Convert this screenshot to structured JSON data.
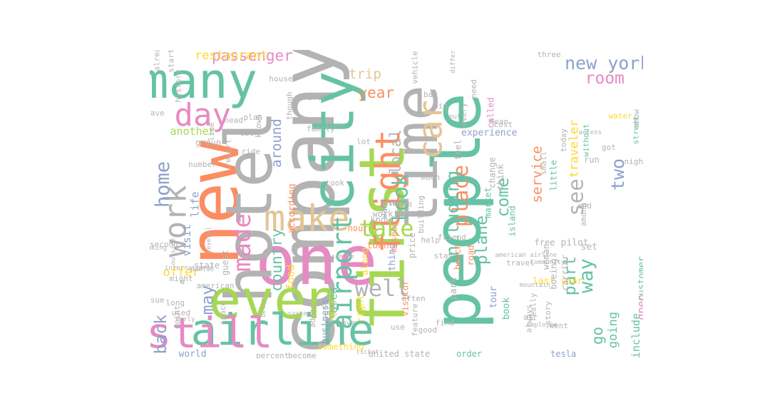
{
  "palette": {
    "grey": "#b3b3b3",
    "orange": "#fc8d62",
    "teal": "#66c2a5",
    "pink": "#e78ac3",
    "green": "#a6d854",
    "tan": "#e5c494",
    "blue": "#8da0cb",
    "yellow": "#ffd92f"
  },
  "words": [
    {
      "text": "company",
      "color": "grey",
      "weight": 100,
      "vertical": true
    },
    {
      "text": "new",
      "color": "orange",
      "weight": 92,
      "vertical": true
    },
    {
      "text": "one",
      "color": "pink",
      "weight": 90,
      "vertical": false
    },
    {
      "text": "people",
      "color": "teal",
      "weight": 88,
      "vertical": true
    },
    {
      "text": "hotel",
      "color": "grey",
      "weight": 86,
      "vertical": true
    },
    {
      "text": "first",
      "color": "green",
      "weight": 84,
      "vertical": true
    },
    {
      "text": "time",
      "color": "grey",
      "weight": 80,
      "vertical": true
    },
    {
      "text": "city",
      "color": "teal",
      "weight": 78,
      "vertical": true
    },
    {
      "text": "even",
      "color": "green",
      "weight": 72,
      "vertical": false
    },
    {
      "text": "many",
      "color": "teal",
      "weight": 66,
      "vertical": false
    },
    {
      "text": "airline",
      "color": "teal",
      "weight": 58,
      "vertical": false
    },
    {
      "text": "still",
      "color": "pink",
      "weight": 56,
      "vertical": false
    },
    {
      "text": "make",
      "color": "tan",
      "weight": 48,
      "vertical": false
    },
    {
      "text": "flight",
      "color": "orange",
      "weight": 46,
      "vertical": true
    },
    {
      "text": "car",
      "color": "tan",
      "weight": 44,
      "vertical": true
    },
    {
      "text": "day",
      "color": "pink",
      "weight": 42,
      "vertical": false
    },
    {
      "text": "work",
      "color": "grey",
      "weight": 40,
      "vertical": true
    },
    {
      "text": "airport",
      "color": "teal",
      "weight": 36,
      "vertical": true
    },
    {
      "text": "made",
      "color": "pink",
      "weight": 32,
      "vertical": true
    },
    {
      "text": "well",
      "color": "grey",
      "weight": 30,
      "vertical": false
    },
    {
      "text": "take",
      "color": "green",
      "weight": 30,
      "vertical": false
    },
    {
      "text": "look",
      "color": "teal",
      "weight": 28,
      "vertical": true
    },
    {
      "text": "place",
      "color": "orange",
      "weight": 28,
      "vertical": true
    },
    {
      "text": "see",
      "color": "grey",
      "weight": 28,
      "vertical": true
    },
    {
      "text": "home",
      "color": "blue",
      "weight": 26,
      "vertical": true
    },
    {
      "text": "new york",
      "color": "blue",
      "weight": 24,
      "vertical": false
    },
    {
      "text": "including",
      "color": "teal",
      "weight": 24,
      "vertical": true
    },
    {
      "text": "way",
      "color": "teal",
      "weight": 26,
      "vertical": true
    },
    {
      "text": "back",
      "color": "blue",
      "weight": 22,
      "vertical": true
    },
    {
      "text": "two",
      "color": "blue",
      "weight": 24,
      "vertical": true
    },
    {
      "text": "room",
      "color": "pink",
      "weight": 22,
      "vertical": false
    },
    {
      "text": "passenger",
      "color": "pink",
      "weight": 20,
      "vertical": false
    },
    {
      "text": "plane",
      "color": "teal",
      "weight": 22,
      "vertical": true
    },
    {
      "text": "come",
      "color": "teal",
      "weight": 22,
      "vertical": true
    },
    {
      "text": "may",
      "color": "blue",
      "weight": 22,
      "vertical": true
    },
    {
      "text": "part",
      "color": "teal",
      "weight": 22,
      "vertical": true
    },
    {
      "text": "year",
      "color": "orange",
      "weight": 20,
      "vertical": false
    },
    {
      "text": "local",
      "color": "grey",
      "weight": 20,
      "vertical": true
    },
    {
      "text": "around",
      "color": "blue",
      "weight": 18,
      "vertical": true
    },
    {
      "text": "country",
      "color": "teal",
      "weight": 20,
      "vertical": true
    },
    {
      "text": "restaurant",
      "color": "yellow",
      "weight": 16,
      "vertical": false
    },
    {
      "text": "trip",
      "color": "tan",
      "weight": 18,
      "vertical": false
    },
    {
      "text": "offer",
      "color": "yellow",
      "weight": 16,
      "vertical": false
    },
    {
      "text": "service",
      "color": "orange",
      "weight": 18,
      "vertical": true
    },
    {
      "text": "traveler",
      "color": "yellow",
      "weight": 16,
      "vertical": true
    },
    {
      "text": "going",
      "color": "teal",
      "weight": 16,
      "vertical": true
    },
    {
      "text": "another",
      "color": "green",
      "weight": 14,
      "vertical": false
    },
    {
      "text": "go",
      "color": "teal",
      "weight": 20,
      "vertical": true
    },
    {
      "text": "visit",
      "color": "blue",
      "weight": 14,
      "vertical": true
    },
    {
      "text": "life",
      "color": "blue",
      "weight": 14,
      "vertical": true
    },
    {
      "text": "include",
      "color": "teal",
      "weight": 14,
      "vertical": true
    },
    {
      "text": "open",
      "color": "pink",
      "weight": 14,
      "vertical": true
    },
    {
      "text": "experience",
      "color": "blue",
      "weight": 12,
      "vertical": false
    },
    {
      "text": "last year",
      "color": "yellow",
      "weight": 12,
      "vertical": false
    },
    {
      "text": "area",
      "color": "teal",
      "weight": 14,
      "vertical": true
    },
    {
      "text": "food",
      "color": "yellow",
      "weight": 14,
      "vertical": true
    },
    {
      "text": "according",
      "color": "orange",
      "weight": 12,
      "vertical": true
    },
    {
      "text": "customer",
      "color": "teal",
      "weight": 12,
      "vertical": true
    },
    {
      "text": "world",
      "color": "blue",
      "weight": 12,
      "vertical": false
    },
    {
      "text": "united state",
      "color": "grey",
      "weight": 11,
      "vertical": false
    },
    {
      "text": "order",
      "color": "teal",
      "weight": 11,
      "vertical": false
    },
    {
      "text": "tesla",
      "color": "blue",
      "weight": 11,
      "vertical": false
    },
    {
      "text": "something",
      "color": "yellow",
      "weight": 11,
      "vertical": false
    },
    {
      "text": "become",
      "color": "grey",
      "weight": 10,
      "vertical": false
    },
    {
      "text": "percent",
      "color": "grey",
      "weight": 10,
      "vertical": false
    },
    {
      "text": "ticket",
      "color": "grey",
      "weight": 9,
      "vertical": false
    },
    {
      "text": "told",
      "color": "tan",
      "weight": 12,
      "vertical": true
    },
    {
      "text": "business",
      "color": "blue",
      "weight": 12,
      "vertical": true
    },
    {
      "text": "right",
      "color": "yellow",
      "weight": 12,
      "vertical": true
    },
    {
      "text": "along",
      "color": "yellow",
      "weight": 12,
      "vertical": true
    },
    {
      "text": "thing",
      "color": "blue",
      "weight": 12,
      "vertical": true
    },
    {
      "text": "town",
      "color": "orange",
      "weight": 12,
      "vertical": false
    },
    {
      "text": "museum",
      "color": "orange",
      "weight": 11,
      "vertical": true
    },
    {
      "text": "want",
      "color": "blue",
      "weight": 11,
      "vertical": true
    },
    {
      "text": "hour",
      "color": "orange",
      "weight": 11,
      "vertical": false
    },
    {
      "text": "know",
      "color": "grey",
      "weight": 11,
      "vertical": false
    },
    {
      "text": "working",
      "color": "grey",
      "weight": 11,
      "vertical": false
    },
    {
      "text": "price",
      "color": "grey",
      "weight": 11,
      "vertical": true
    },
    {
      "text": "visitor",
      "color": "orange",
      "weight": 11,
      "vertical": true
    },
    {
      "text": "park",
      "color": "grey",
      "weight": 12,
      "vertical": true
    },
    {
      "text": "tour",
      "color": "blue",
      "weight": 12,
      "vertical": true
    },
    {
      "text": "book",
      "color": "teal",
      "weight": 12,
      "vertical": true
    },
    {
      "text": "beach",
      "color": "orange",
      "weight": 11,
      "vertical": true
    },
    {
      "text": "road",
      "color": "orange",
      "weight": 11,
      "vertical": true
    },
    {
      "text": "woman",
      "color": "grey",
      "weight": 11,
      "vertical": true
    },
    {
      "text": "free",
      "color": "grey",
      "weight": 11,
      "vertical": false
    },
    {
      "text": "pilot",
      "color": "grey",
      "weight": 12,
      "vertical": false
    },
    {
      "text": "boeing",
      "color": "grey",
      "weight": 11,
      "vertical": true
    },
    {
      "text": "carrier",
      "color": "grey",
      "weight": 11,
      "vertical": true
    },
    {
      "text": "island",
      "color": "teal",
      "weight": 11,
      "vertical": true
    },
    {
      "text": "market",
      "color": "teal",
      "weight": 11,
      "vertical": true
    },
    {
      "text": "change",
      "color": "grey",
      "weight": 11,
      "vertical": true
    },
    {
      "text": "think",
      "color": "grey",
      "weight": 11,
      "vertical": true
    },
    {
      "text": "friend",
      "color": "grey",
      "weight": 10,
      "vertical": false
    },
    {
      "text": "building",
      "color": "grey",
      "weight": 10,
      "vertical": true
    },
    {
      "text": "small",
      "color": "grey",
      "weight": 10,
      "vertical": true
    },
    {
      "text": "set",
      "color": "grey",
      "weight": 12,
      "vertical": false
    },
    {
      "text": "little",
      "color": "teal",
      "weight": 11,
      "vertical": true
    },
    {
      "text": "night",
      "color": "grey",
      "weight": 10,
      "vertical": false
    },
    {
      "text": "street",
      "color": "teal",
      "weight": 10,
      "vertical": true
    },
    {
      "text": "show",
      "color": "grey",
      "weight": 10,
      "vertical": true
    },
    {
      "text": "today",
      "color": "grey",
      "weight": 10,
      "vertical": true
    },
    {
      "text": "without",
      "color": "teal",
      "weight": 10,
      "vertical": true
    },
    {
      "text": "water",
      "color": "yellow",
      "weight": 10,
      "vertical": false
    },
    {
      "text": "got",
      "color": "grey",
      "weight": 10,
      "vertical": false
    },
    {
      "text": "run",
      "color": "grey",
      "weight": 11,
      "vertical": false
    },
    {
      "text": "cost",
      "color": "grey",
      "weight": 10,
      "vertical": false
    },
    {
      "text": "called",
      "color": "pink",
      "weight": 11,
      "vertical": true
    },
    {
      "text": "feel",
      "color": "grey",
      "weight": 11,
      "vertical": true
    },
    {
      "text": "need",
      "color": "grey",
      "weight": 10,
      "vertical": true
    },
    {
      "text": "bar",
      "color": "grey",
      "weight": 10,
      "vertical": false
    },
    {
      "text": "plan",
      "color": "grey",
      "weight": 10,
      "vertical": false
    },
    {
      "text": "family",
      "color": "grey",
      "weight": 10,
      "vertical": false
    },
    {
      "text": "known",
      "color": "grey",
      "weight": 10,
      "vertical": true
    },
    {
      "text": "uber",
      "color": "grey",
      "weight": 10,
      "vertical": false
    },
    {
      "text": "ride",
      "color": "grey",
      "weight": 10,
      "vertical": false
    },
    {
      "text": "house",
      "color": "grey",
      "weight": 10,
      "vertical": false
    },
    {
      "text": "resort",
      "color": "grey",
      "weight": 10,
      "vertical": true
    },
    {
      "text": "group",
      "color": "grey",
      "weight": 11,
      "vertical": false
    },
    {
      "text": "number",
      "color": "grey",
      "weight": 10,
      "vertical": false
    },
    {
      "text": "head",
      "color": "grey",
      "weight": 10,
      "vertical": false
    },
    {
      "text": "line",
      "color": "grey",
      "weight": 10,
      "vertical": true
    },
    {
      "text": "state",
      "color": "grey",
      "weight": 11,
      "vertical": false
    },
    {
      "text": "used",
      "color": "grey",
      "weight": 10,
      "vertical": false
    },
    {
      "text": "guest",
      "color": "grey",
      "weight": 11,
      "vertical": true
    },
    {
      "text": "space",
      "color": "grey",
      "weight": 10,
      "vertical": true
    },
    {
      "text": "american",
      "color": "grey",
      "weight": 10,
      "vertical": false
    },
    {
      "text": "long",
      "color": "grey",
      "weight": 10,
      "vertical": false
    },
    {
      "text": "point",
      "color": "grey",
      "weight": 10,
      "vertical": true
    },
    {
      "text": "might",
      "color": "grey",
      "weight": 10,
      "vertical": false
    },
    {
      "text": "second",
      "color": "grey",
      "weight": 10,
      "vertical": false
    },
    {
      "text": "started",
      "color": "grey",
      "weight": 10,
      "vertical": true
    },
    {
      "text": "making",
      "color": "grey",
      "weight": 9,
      "vertical": false
    },
    {
      "text": "better",
      "color": "grey",
      "weight": 9,
      "vertical": true
    },
    {
      "text": "system",
      "color": "grey",
      "weight": 9,
      "vertical": false
    },
    {
      "text": "added",
      "color": "grey",
      "weight": 10,
      "vertical": true
    },
    {
      "text": "aircraft",
      "color": "grey",
      "weight": 10,
      "vertical": true
    },
    {
      "text": "love",
      "color": "grey",
      "weight": 10,
      "vertical": false
    },
    {
      "text": "use",
      "color": "grey",
      "weight": 10,
      "vertical": false
    },
    {
      "text": "good",
      "color": "grey",
      "weight": 10,
      "vertical": false
    },
    {
      "text": "help",
      "color": "grey",
      "weight": 10,
      "vertical": false
    },
    {
      "text": "stay",
      "color": "grey",
      "weight": 10,
      "vertical": false
    },
    {
      "text": "took",
      "color": "grey",
      "weight": 10,
      "vertical": false
    },
    {
      "text": "much",
      "color": "grey",
      "weight": 10,
      "vertical": false
    },
    {
      "text": "lot",
      "color": "grey",
      "weight": 10,
      "vertical": false
    },
    {
      "text": "start",
      "color": "grey",
      "weight": 9,
      "vertical": false
    },
    {
      "text": "driver",
      "color": "grey",
      "weight": 10,
      "vertical": false
    },
    {
      "text": "though",
      "color": "grey",
      "weight": 10,
      "vertical": true
    },
    {
      "text": "vehicle",
      "color": "grey",
      "weight": 10,
      "vertical": true
    },
    {
      "text": "feature",
      "color": "grey",
      "weight": 10,
      "vertical": true
    },
    {
      "text": "often",
      "color": "grey",
      "weight": 10,
      "vertical": false
    },
    {
      "text": "find",
      "color": "grey",
      "weight": 10,
      "vertical": false
    },
    {
      "text": "community",
      "color": "grey",
      "weight": 9,
      "vertical": false
    },
    {
      "text": "always",
      "color": "grey",
      "weight": 10,
      "vertical": true
    },
    {
      "text": "really",
      "color": "grey",
      "weight": 10,
      "vertical": true
    },
    {
      "text": "every",
      "color": "grey",
      "weight": 10,
      "vertical": true
    },
    {
      "text": "three",
      "color": "grey",
      "weight": 10,
      "vertical": false
    },
    {
      "text": "mean",
      "color": "grey",
      "weight": 10,
      "vertical": false
    },
    {
      "text": "big",
      "color": "grey",
      "weight": 10,
      "vertical": false
    },
    {
      "text": "put",
      "color": "grey",
      "weight": 9,
      "vertical": false
    },
    {
      "text": "access",
      "color": "grey",
      "weight": 9,
      "vertical": false
    },
    {
      "text": "among",
      "color": "grey",
      "weight": 10,
      "vertical": true
    },
    {
      "text": "end",
      "color": "grey",
      "weight": 10,
      "vertical": false
    },
    {
      "text": "air",
      "color": "grey",
      "weight": 10,
      "vertical": false
    },
    {
      "text": "employee",
      "color": "grey",
      "weight": 9,
      "vertical": false
    },
    {
      "text": "mountain",
      "color": "grey",
      "weight": 9,
      "vertical": false
    },
    {
      "text": "american airline",
      "color": "grey",
      "weight": 9,
      "vertical": false
    },
    {
      "text": "went",
      "color": "grey",
      "weight": 10,
      "vertical": false
    },
    {
      "text": "travel",
      "color": "grey",
      "weight": 10,
      "vertical": false
    },
    {
      "text": "story",
      "color": "grey",
      "weight": 10,
      "vertical": true
    },
    {
      "text": "history",
      "color": "grey",
      "weight": 10,
      "vertical": true
    },
    {
      "text": "leave",
      "color": "grey",
      "weight": 10,
      "vertical": false
    },
    {
      "text": "already",
      "color": "grey",
      "weight": 10,
      "vertical": true
    },
    {
      "text": "issue",
      "color": "grey",
      "weight": 10,
      "vertical": false
    },
    {
      "text": "international",
      "color": "grey",
      "weight": 9,
      "vertical": false
    },
    {
      "text": "different",
      "color": "grey",
      "weight": 9,
      "vertical": true
    },
    {
      "text": "example",
      "color": "grey",
      "weight": 9,
      "vertical": false
    },
    {
      "text": "outside",
      "color": "grey",
      "weight": 9,
      "vertical": true
    },
    {
      "text": "public",
      "color": "grey",
      "weight": 9,
      "vertical": false
    },
    {
      "text": "u",
      "color": "grey",
      "weight": 10,
      "vertical": false
    },
    {
      "text": "several",
      "color": "grey",
      "weight": 9,
      "vertical": true
    },
    {
      "text": "early",
      "color": "grey",
      "weight": 9,
      "vertical": false
    },
    {
      "text": "offering",
      "color": "grey",
      "weight": 9,
      "vertical": false
    },
    {
      "text": "stop",
      "color": "grey",
      "weight": 9,
      "vertical": false
    },
    {
      "text": "full",
      "color": "grey",
      "weight": 9,
      "vertical": false
    },
    {
      "text": "idea",
      "color": "grey",
      "weight": 9,
      "vertical": false
    }
  ]
}
